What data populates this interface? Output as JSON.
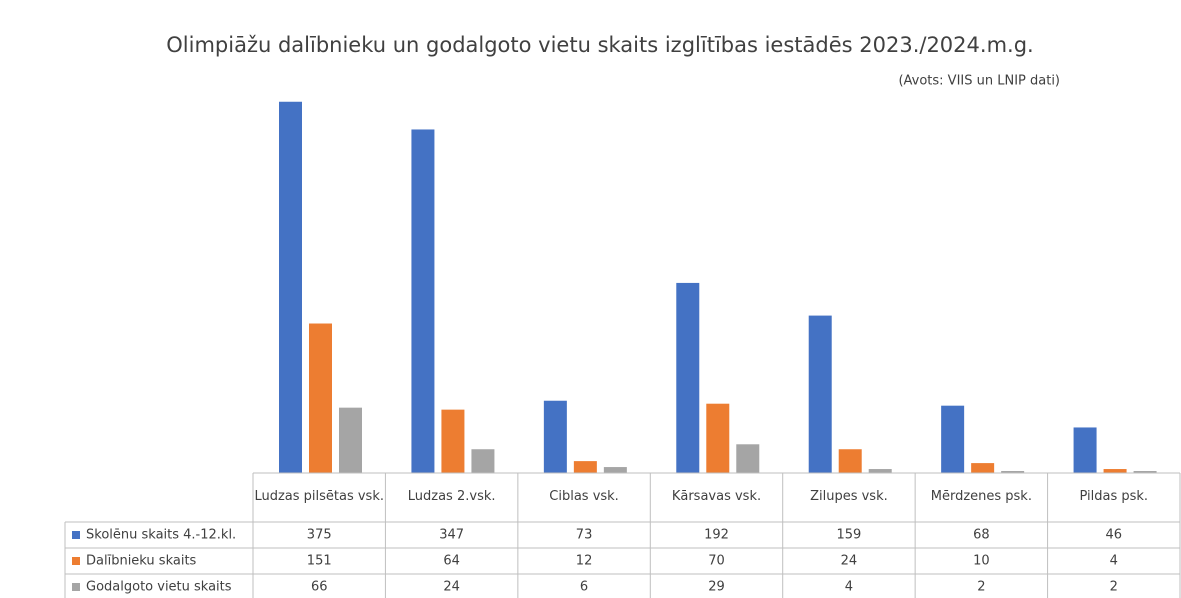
{
  "chart_data": {
    "type": "bar",
    "title": "Olimpiāžu dalībnieku un godalgoto vietu skaits izglītības iestādēs 2023./2024.m.g.",
    "subtitle": "(Avots: VIIS un LNIP dati)",
    "categories": [
      "Ludzas pilsētas vsk.",
      "Ludzas 2.vsk.",
      "Ciblas vsk.",
      "Kārsavas vsk.",
      "Zilupes vsk.",
      "Mērdzenes psk.",
      "Pildas psk."
    ],
    "series": [
      {
        "name": "Skolēnu skaits 4.-12.kl.",
        "color": "#4472c4",
        "values": [
          375,
          347,
          73,
          192,
          159,
          68,
          46
        ]
      },
      {
        "name": "Dalībnieku skaits",
        "color": "#ed7d31",
        "values": [
          151,
          64,
          12,
          70,
          24,
          10,
          4
        ]
      },
      {
        "name": "Godalgoto vietu skaits",
        "color": "#a5a5a5",
        "values": [
          66,
          24,
          6,
          29,
          4,
          2,
          2
        ]
      }
    ],
    "ylim": [
      0,
      400
    ]
  }
}
